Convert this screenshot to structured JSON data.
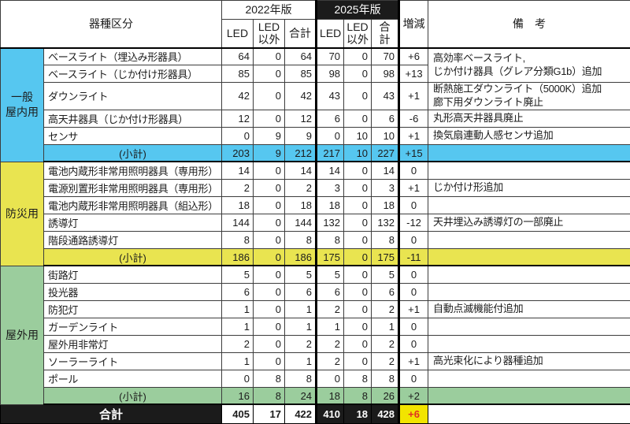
{
  "header": {
    "category_label": "器種区分",
    "year_2022": "2022年版",
    "year_2025": "2025年版",
    "subcols": [
      "LED",
      "LED以外",
      "合計"
    ],
    "change_label": "増減",
    "remarks_label": "備　考"
  },
  "colors": {
    "indoor": "#56c7f0",
    "emergency": "#e9e450",
    "outdoor": "#9bcd9d",
    "header_black": "#1b1b1b",
    "total_change_bg": "#f2e400",
    "total_change_text": "#e03322"
  },
  "sections": [
    {
      "group_label": "一般\n屋内用",
      "color": "#56c7f0",
      "rows": [
        {
          "item": "ベースライト（埋込み形器具）",
          "v2022": [
            64,
            0,
            64
          ],
          "v2025": [
            70,
            0,
            70
          ],
          "change": "+6",
          "remark": "高効率ベースライト,\nじか付け器具（グレア分類G1b）追加",
          "remark_rowspan": 2
        },
        {
          "item": "ベースライト（じか付け形器具）",
          "v2022": [
            85,
            0,
            85
          ],
          "v2025": [
            98,
            0,
            98
          ],
          "change": "+13",
          "remark_skip": true
        },
        {
          "item": "ダウンライト",
          "v2022": [
            42,
            0,
            42
          ],
          "v2025": [
            43,
            0,
            43
          ],
          "change": "+1",
          "remark": "断熱施工ダウンライト（5000K）追加\n廊下用ダウンライト廃止"
        },
        {
          "item": "高天井器具（じか付け形器具）",
          "v2022": [
            12,
            0,
            12
          ],
          "v2025": [
            6,
            0,
            6
          ],
          "change": "-6",
          "remark": "丸形高天井器具廃止"
        },
        {
          "item": "センサ",
          "v2022": [
            0,
            9,
            9
          ],
          "v2025": [
            0,
            10,
            10
          ],
          "change": "+1",
          "remark": "換気扇連動人感センサ追加"
        }
      ],
      "subtotal": {
        "label": "(小計)",
        "v2022": [
          203,
          9,
          212
        ],
        "v2025": [
          217,
          10,
          227
        ],
        "change": "+15",
        "remark": ""
      }
    },
    {
      "group_label": "防災用",
      "color": "#e9e450",
      "rows": [
        {
          "item": "電池内蔵形非常用照明器具（専用形）",
          "v2022": [
            14,
            0,
            14
          ],
          "v2025": [
            14,
            0,
            14
          ],
          "change": "0",
          "remark": ""
        },
        {
          "item": "電源別置形非常用照明器具（専用形）",
          "v2022": [
            2,
            0,
            2
          ],
          "v2025": [
            3,
            0,
            3
          ],
          "change": "+1",
          "remark": "じか付け形追加"
        },
        {
          "item": "電池内蔵形非常用照明器具（組込形）",
          "v2022": [
            18,
            0,
            18
          ],
          "v2025": [
            18,
            0,
            18
          ],
          "change": "0",
          "remark": ""
        },
        {
          "item": "誘導灯",
          "v2022": [
            144,
            0,
            144
          ],
          "v2025": [
            132,
            0,
            132
          ],
          "change": "-12",
          "remark": "天井埋込み誘導灯の一部廃止"
        },
        {
          "item": "階段通路誘導灯",
          "v2022": [
            8,
            0,
            8
          ],
          "v2025": [
            8,
            0,
            8
          ],
          "change": "0",
          "remark": ""
        }
      ],
      "subtotal": {
        "label": "(小計)",
        "v2022": [
          186,
          0,
          186
        ],
        "v2025": [
          175,
          0,
          175
        ],
        "change": "-11",
        "remark": ""
      }
    },
    {
      "group_label": "屋外用",
      "color": "#9bcd9d",
      "rows": [
        {
          "item": "街路灯",
          "v2022": [
            5,
            0,
            5
          ],
          "v2025": [
            5,
            0,
            5
          ],
          "change": "0",
          "remark": ""
        },
        {
          "item": "投光器",
          "v2022": [
            6,
            0,
            6
          ],
          "v2025": [
            6,
            0,
            6
          ],
          "change": "0",
          "remark": ""
        },
        {
          "item": "防犯灯",
          "v2022": [
            1,
            0,
            1
          ],
          "v2025": [
            2,
            0,
            2
          ],
          "change": "+1",
          "remark": "自動点滅機能付追加"
        },
        {
          "item": "ガーデンライト",
          "v2022": [
            1,
            0,
            1
          ],
          "v2025": [
            1,
            0,
            1
          ],
          "change": "0",
          "remark": ""
        },
        {
          "item": "屋外用非常灯",
          "v2022": [
            2,
            0,
            2
          ],
          "v2025": [
            2,
            0,
            2
          ],
          "change": "0",
          "remark": ""
        },
        {
          "item": "ソーラーライト",
          "v2022": [
            1,
            0,
            1
          ],
          "v2025": [
            2,
            0,
            2
          ],
          "change": "+1",
          "remark": "高光束化により器種追加"
        },
        {
          "item": "ポール",
          "v2022": [
            0,
            8,
            8
          ],
          "v2025": [
            0,
            8,
            8
          ],
          "change": "0",
          "remark": ""
        }
      ],
      "subtotal": {
        "label": "(小計)",
        "v2022": [
          16,
          8,
          24
        ],
        "v2025": [
          18,
          8,
          26
        ],
        "change": "+2",
        "remark": ""
      }
    }
  ],
  "total": {
    "label": "合計",
    "v2022": [
      405,
      17,
      422
    ],
    "v2025": [
      410,
      18,
      428
    ],
    "change": "+6",
    "remark": ""
  }
}
